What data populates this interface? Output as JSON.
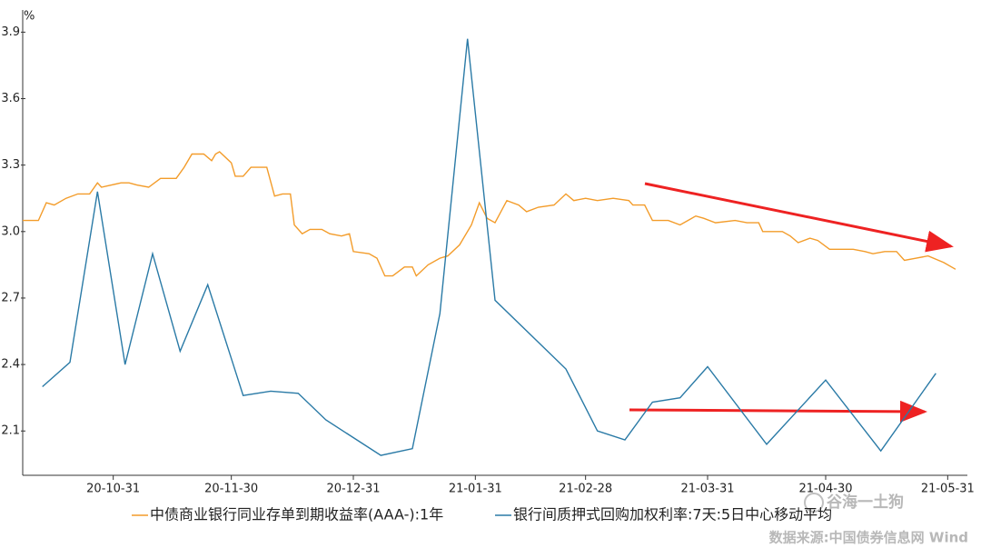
{
  "chart_data": {
    "type": "line",
    "y_label": "%",
    "xlim": [
      "20-10-08",
      "21-06-05"
    ],
    "xticks": [
      "20-10-31",
      "20-11-30",
      "20-12-31",
      "21-01-31",
      "21-02-28",
      "21-03-31",
      "21-04-30",
      "21-05-31"
    ],
    "ylim": [
      1.9,
      4.0
    ],
    "yticks": [
      2.1,
      2.4,
      2.7,
      {
        "value": 3,
        "label": "3.0"
      },
      3.3,
      3.6,
      3.9
    ],
    "grid": false,
    "legend": "bottom",
    "series": [
      {
        "name": "中债商业银行同业存单到期收益率(AAA-):1年",
        "color": "#f39c2a",
        "x": [
          "20-10-08",
          "20-10-12",
          "20-10-14",
          "20-10-16",
          "20-10-19",
          "20-10-22",
          "20-10-25",
          "20-10-27",
          "20-10-28",
          "20-11-02",
          "20-11-04",
          "20-11-06",
          "20-11-09",
          "20-11-12",
          "20-11-16",
          "20-11-18",
          "20-11-20",
          "20-11-23",
          "20-11-25",
          "20-11-26",
          "20-11-27",
          "20-11-30",
          "20-12-01",
          "20-12-03",
          "20-12-05",
          "20-12-09",
          "20-12-11",
          "20-12-13",
          "20-12-15",
          "20-12-16",
          "20-12-18",
          "20-12-20",
          "20-12-23",
          "20-12-25",
          "20-12-28",
          "20-12-30",
          "20-12-31",
          "21-01-04",
          "21-01-06",
          "21-01-08",
          "21-01-10",
          "21-01-13",
          "21-01-15",
          "21-01-16",
          "21-01-19",
          "21-01-22",
          "21-01-24",
          "21-01-27",
          "21-01-30",
          "21-02-01",
          "21-02-03",
          "21-02-05",
          "21-02-08",
          "21-02-11",
          "21-02-13",
          "21-02-16",
          "21-02-20",
          "21-02-23",
          "21-02-25",
          "21-02-28",
          "21-03-03",
          "21-03-07",
          "21-03-11",
          "21-03-12",
          "21-03-15",
          "21-03-17",
          "21-03-21",
          "21-03-24",
          "21-03-28",
          "21-03-30",
          "21-04-02",
          "21-04-07",
          "21-04-10",
          "21-04-13",
          "21-04-14",
          "21-04-19",
          "21-04-21",
          "21-04-23",
          "21-04-26",
          "21-04-28",
          "21-05-01",
          "21-05-07",
          "21-05-10",
          "21-05-12",
          "21-05-15",
          "21-05-18",
          "21-05-20",
          "21-05-23",
          "21-05-26",
          "21-05-30",
          "21-06-02"
        ],
        "values": [
          3.05,
          3.05,
          3.13,
          3.12,
          3.15,
          3.17,
          3.17,
          3.22,
          3.2,
          3.22,
          3.22,
          3.21,
          3.2,
          3.24,
          3.24,
          3.29,
          3.35,
          3.35,
          3.32,
          3.35,
          3.36,
          3.31,
          3.25,
          3.25,
          3.29,
          3.29,
          3.16,
          3.17,
          3.17,
          3.03,
          2.99,
          3.01,
          3.01,
          2.99,
          2.98,
          2.99,
          2.91,
          2.9,
          2.88,
          2.8,
          2.8,
          2.84,
          2.84,
          2.8,
          2.85,
          2.88,
          2.89,
          2.94,
          3.03,
          3.13,
          3.06,
          3.04,
          3.14,
          3.12,
          3.09,
          3.11,
          3.12,
          3.17,
          3.14,
          3.15,
          3.14,
          3.15,
          3.14,
          3.12,
          3.12,
          3.05,
          3.05,
          3.03,
          3.07,
          3.06,
          3.04,
          3.05,
          3.04,
          3.04,
          3.0,
          3.0,
          2.98,
          2.95,
          2.97,
          2.96,
          2.92,
          2.92,
          2.91,
          2.9,
          2.91,
          2.91,
          2.87,
          2.88,
          2.89,
          2.86,
          2.83
        ]
      },
      {
        "name": "银行间质押式回购加权利率:7天:5日中心移动平均",
        "color": "#2a7aa6",
        "x": [
          "20-10-13",
          "20-10-20",
          "20-10-27",
          "20-11-03",
          "20-11-10",
          "20-11-17",
          "20-11-24",
          "20-12-03",
          "20-12-10",
          "20-12-17",
          "20-12-24",
          "21-01-07",
          "21-01-15",
          "21-01-22",
          "21-01-29",
          "21-02-05",
          "21-02-23",
          "21-03-03",
          "21-03-10",
          "21-03-17",
          "21-03-24",
          "21-03-31",
          "21-04-15",
          "21-04-30",
          "21-05-14",
          "21-05-28"
        ],
        "values": [
          2.3,
          2.41,
          3.18,
          2.4,
          2.9,
          2.46,
          2.76,
          2.26,
          2.28,
          2.27,
          2.15,
          1.99,
          2.02,
          2.63,
          3.87,
          2.69,
          2.38,
          2.1,
          2.06,
          2.23,
          2.25,
          2.39,
          2.04,
          2.33,
          2.01,
          2.36
        ]
      }
    ],
    "watermark": "谷海一土狗",
    "source": "数据来源:中国债券信息网 Wind"
  }
}
